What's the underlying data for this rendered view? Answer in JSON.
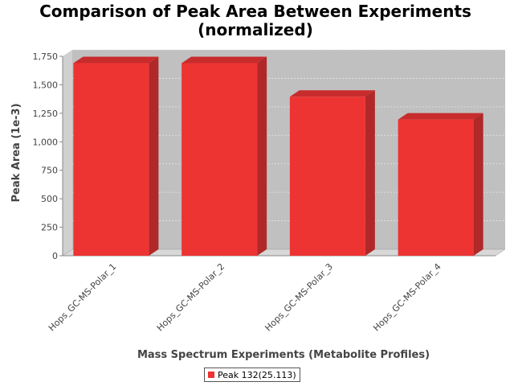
{
  "chart_data": {
    "type": "bar",
    "title_lines": [
      "Comparison of Peak Area Between Experiments",
      "(normalized)"
    ],
    "xlabel": "Mass Spectrum Experiments (Metabolite Profiles)",
    "ylabel": "Peak Area (1e-3)",
    "categories": [
      "Hops_GC-MS-Polar_1",
      "Hops_GC-MS-Polar_2",
      "Hops_GC-MS-Polar_3",
      "Hops_GC-MS-Polar_4"
    ],
    "series": [
      {
        "name": "Peak 132(25.113)",
        "values": [
          1690,
          1690,
          1395,
          1195
        ]
      }
    ],
    "ylim": [
      0,
      1750
    ],
    "yticks": [
      0,
      250,
      500,
      750,
      1000,
      1250,
      1500,
      1750
    ],
    "ytick_labels": [
      "0",
      "250",
      "500",
      "750",
      "1,000",
      "1,250",
      "1,500",
      "1,750"
    ],
    "grid": true,
    "legend_position": "bottom",
    "render_style": "3d",
    "colors": {
      "bar_front": "#ee3333",
      "bar_side": "#b02828",
      "bar_top": "#c82c2c",
      "plot_background": "#c0c0c0",
      "floor": "#d8d8d8",
      "grid": "#e6e6e6"
    }
  }
}
